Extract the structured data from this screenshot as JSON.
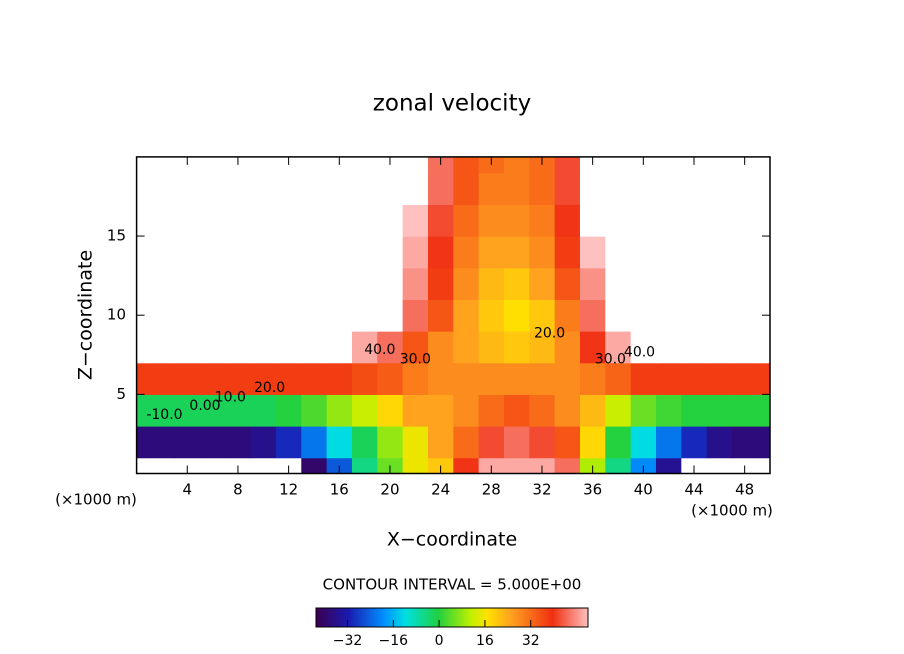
{
  "chart_data": {
    "type": "contour",
    "title": "zonal velocity",
    "x_label": "X−coordinate",
    "y_label": "Z−coordinate",
    "x_unit_left": "(×1000 m)",
    "x_unit_right": "(×1000 m)",
    "interval_text": "CONTOUR INTERVAL = 5.000E+00",
    "xlim": [
      0,
      50
    ],
    "ylim": [
      0,
      20
    ],
    "xticks": [
      4,
      8,
      12,
      16,
      20,
      24,
      28,
      32,
      36,
      40,
      44,
      48
    ],
    "yticks": [
      5,
      10,
      15
    ],
    "x": [
      0,
      2,
      4,
      6,
      8,
      10,
      12,
      14,
      16,
      18,
      20,
      22,
      24,
      26,
      28,
      30,
      32,
      34,
      36,
      38,
      40,
      42,
      44,
      46,
      48,
      50
    ],
    "y": [
      0,
      2,
      4,
      6,
      8,
      10,
      12,
      14,
      16,
      18,
      20
    ],
    "z": [
      [
        -48,
        -48,
        -48,
        -48,
        -48,
        -48,
        -48,
        -40,
        -25,
        -5,
        5,
        15,
        20,
        40,
        50,
        50,
        50,
        45,
        10,
        -5,
        -20,
        -35,
        -45,
        -48,
        -48,
        -48
      ],
      [
        -38,
        -38,
        -38,
        -38,
        -38,
        -36,
        -30,
        -22,
        -12,
        -2,
        8,
        15,
        25,
        32,
        42,
        45,
        42,
        35,
        18,
        0,
        -12,
        -22,
        -30,
        -36,
        -38,
        -38
      ],
      [
        -2,
        -2,
        -2,
        -2,
        -2,
        -2,
        0,
        3,
        8,
        12,
        18,
        25,
        25,
        28,
        32,
        35,
        32,
        28,
        22,
        12,
        5,
        2,
        0,
        0,
        0,
        0
      ],
      [
        38,
        38,
        38,
        38,
        38,
        38,
        38,
        38,
        38,
        36,
        34,
        30,
        28,
        28,
        28,
        28,
        28,
        28,
        30,
        33,
        38,
        38,
        38,
        38,
        38,
        38
      ],
      [
        55,
        55,
        55,
        55,
        55,
        55,
        55,
        55,
        55,
        50,
        45,
        35,
        28,
        25,
        22,
        20,
        22,
        28,
        40,
        50,
        55,
        55,
        55,
        55,
        55,
        55
      ],
      [
        55,
        55,
        55,
        55,
        55,
        55,
        55,
        55,
        55,
        55,
        55,
        45,
        35,
        25,
        20,
        17,
        20,
        30,
        45,
        55,
        55,
        55,
        55,
        55,
        55,
        55
      ],
      [
        55,
        55,
        55,
        55,
        55,
        55,
        55,
        55,
        55,
        55,
        55,
        48,
        38,
        28,
        22,
        20,
        25,
        35,
        48,
        55,
        55,
        55,
        55,
        55,
        55,
        55
      ],
      [
        55,
        55,
        55,
        55,
        55,
        55,
        55,
        55,
        55,
        55,
        55,
        50,
        40,
        30,
        25,
        25,
        28,
        38,
        52,
        55,
        55,
        55,
        55,
        55,
        55,
        55
      ],
      [
        55,
        55,
        55,
        55,
        55,
        55,
        55,
        55,
        55,
        55,
        55,
        52,
        42,
        32,
        28,
        28,
        30,
        40,
        55,
        55,
        55,
        55,
        55,
        55,
        55,
        55
      ],
      [
        55,
        55,
        55,
        55,
        55,
        55,
        55,
        55,
        55,
        55,
        55,
        55,
        45,
        35,
        30,
        30,
        32,
        42,
        55,
        55,
        55,
        55,
        55,
        55,
        55,
        55
      ],
      [
        55,
        55,
        55,
        55,
        55,
        55,
        55,
        55,
        55,
        55,
        55,
        55,
        45,
        35,
        32,
        30,
        32,
        42,
        55,
        55,
        55,
        55,
        55,
        55,
        55,
        55
      ]
    ],
    "contour_labels": [
      {
        "text": "40.0",
        "x": 19.2,
        "y": 7.8
      },
      {
        "text": "30.0",
        "x": 22,
        "y": 7.2
      },
      {
        "text": "20.0",
        "x": 10.5,
        "y": 5.4
      },
      {
        "text": "10.0",
        "x": 7.4,
        "y": 4.8
      },
      {
        "text": "0.00",
        "x": 5.4,
        "y": 4.25
      },
      {
        "text": "-10.0",
        "x": 2.2,
        "y": 3.7
      },
      {
        "text": "20.0",
        "x": 32.6,
        "y": 8.85
      },
      {
        "text": "30.0",
        "x": 37.4,
        "y": 7.2
      },
      {
        "text": "40.0",
        "x": 39.7,
        "y": 7.65
      }
    ],
    "clim": [
      -43,
      52
    ],
    "cticks": [
      {
        "value": -32,
        "label": "−32"
      },
      {
        "value": -16,
        "label": "−16"
      },
      0,
      16,
      32
    ]
  }
}
